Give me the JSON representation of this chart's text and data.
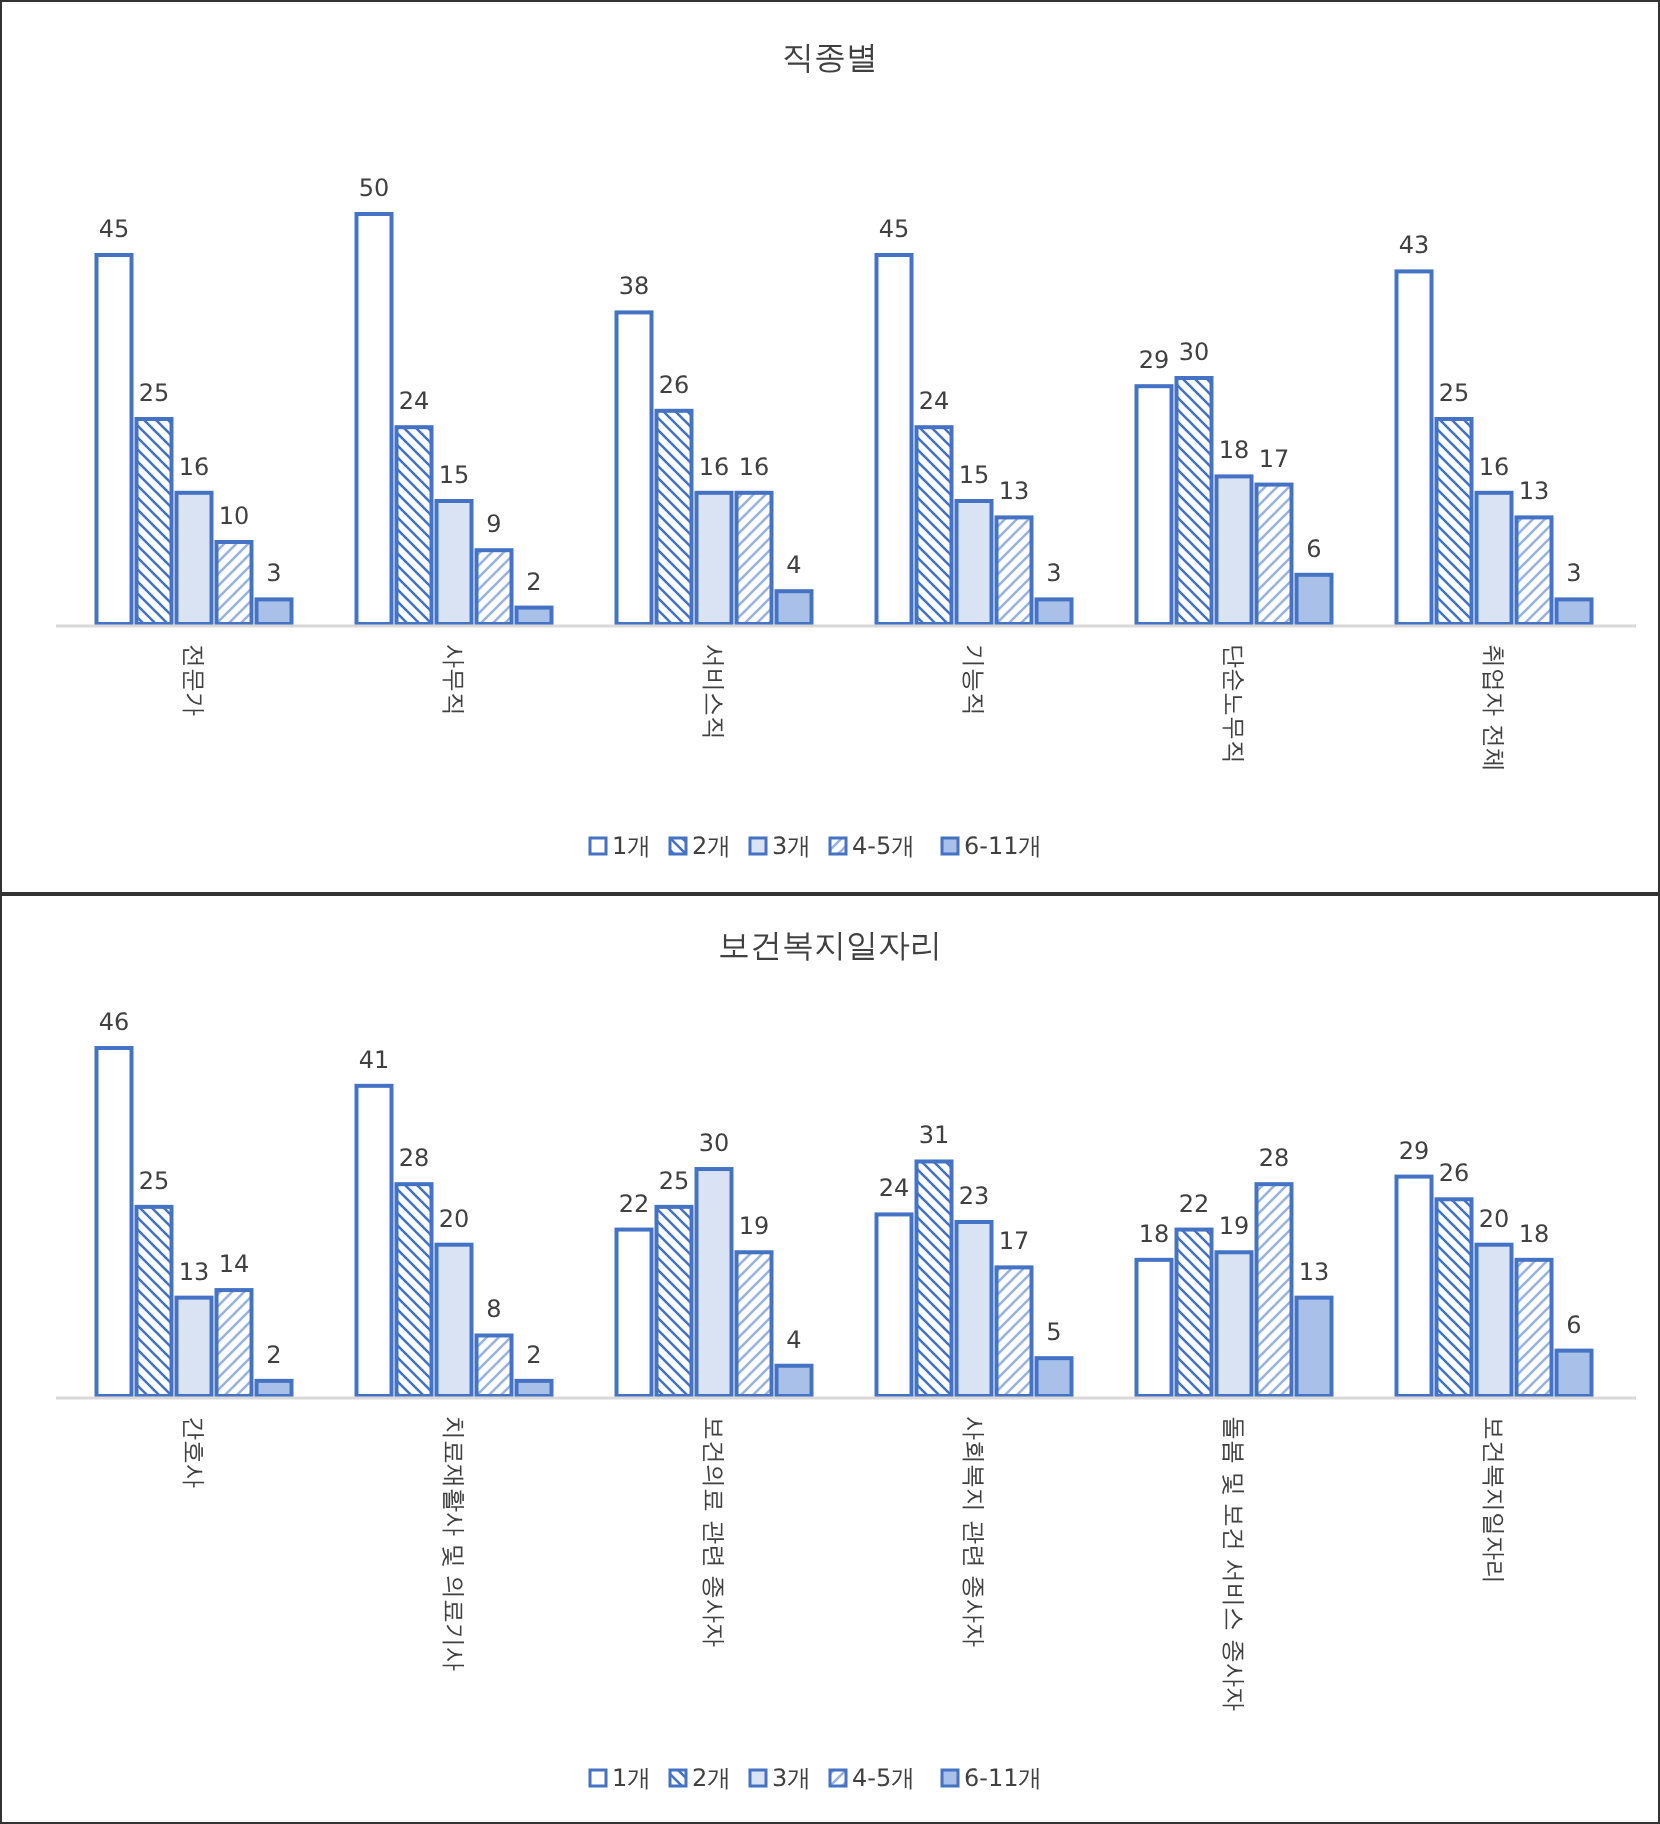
{
  "chart_data": [
    {
      "type": "bar",
      "title": "직종별",
      "categories": [
        "전문가",
        "사무직",
        "서비스직",
        "기능직",
        "단순노무직",
        "취업자 전체"
      ],
      "series": [
        {
          "name": "1개",
          "color": "#ffffff",
          "values": [
            45,
            50,
            38,
            45,
            29,
            43
          ]
        },
        {
          "name": "2개",
          "color": "#4472c4",
          "values": [
            25,
            24,
            26,
            24,
            30,
            25
          ]
        },
        {
          "name": "3개",
          "color": "#dae3f3",
          "values": [
            16,
            15,
            16,
            15,
            18,
            16
          ]
        },
        {
          "name": "4-5개",
          "color": "#4472c4",
          "values": [
            10,
            9,
            16,
            13,
            17,
            13
          ]
        },
        {
          "name": "6-11개",
          "color": "#a9c1e8",
          "values": [
            3,
            2,
            4,
            3,
            6,
            3
          ]
        }
      ],
      "data_labels": true,
      "legend": "bottom"
    },
    {
      "type": "bar",
      "title": "보건복지일자리",
      "categories": [
        "간호사",
        "치료재활사 및 의료기사",
        "보건의료 관련 종사자",
        "사회복지 관련 종사자",
        "돌봄 및 보건 서비스 종사자",
        "보건복지일자리"
      ],
      "series": [
        {
          "name": "1개",
          "color": "#ffffff",
          "values": [
            46,
            41,
            22,
            24,
            18,
            29
          ]
        },
        {
          "name": "2개",
          "color": "#4472c4",
          "values": [
            25,
            28,
            25,
            31,
            22,
            26
          ]
        },
        {
          "name": "3개",
          "color": "#dae3f3",
          "values": [
            13,
            20,
            30,
            23,
            19,
            20
          ]
        },
        {
          "name": "4-5개",
          "color": "#4472c4",
          "values": [
            14,
            8,
            19,
            17,
            28,
            18
          ]
        },
        {
          "name": "6-11개",
          "color": "#a9c1e8",
          "values": [
            2,
            2,
            4,
            5,
            13,
            6
          ]
        }
      ],
      "data_labels": true,
      "legend": "bottom"
    }
  ]
}
